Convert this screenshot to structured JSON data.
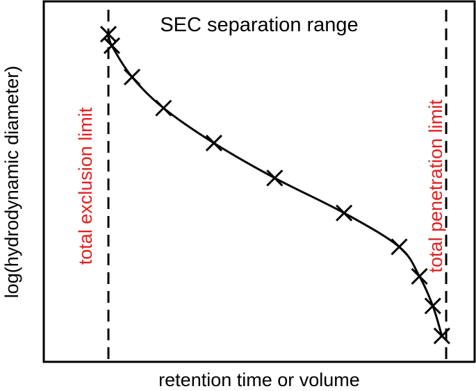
{
  "chart_data": {
    "type": "line",
    "title": "SEC separation range",
    "xlabel": "retention time or volume",
    "ylabel": "log(hydrodynamic diameter)",
    "grid": false,
    "xlim": [
      0,
      100
    ],
    "ylim": [
      0,
      100
    ],
    "annotations": [
      {
        "text": "total exclusion limit",
        "color": "#e02020",
        "x": 15
      },
      {
        "text": "total penetration limit",
        "color": "#e02020",
        "x": 98
      }
    ],
    "limits": [
      {
        "x": 15,
        "style": "dashed"
      },
      {
        "x": 93.4,
        "style": "dashed"
      }
    ],
    "series": [
      {
        "marker": "x",
        "color": "#000000",
        "x": [
          15,
          15.8,
          20.5,
          27.8,
          39.5,
          53.6,
          69.7,
          82.5,
          87.2,
          90.3,
          92.4
        ],
        "y": [
          90.9,
          87.7,
          79.0,
          70.4,
          60.7,
          51.0,
          41.3,
          31.9,
          23.7,
          15.5,
          7.2
        ]
      }
    ]
  }
}
